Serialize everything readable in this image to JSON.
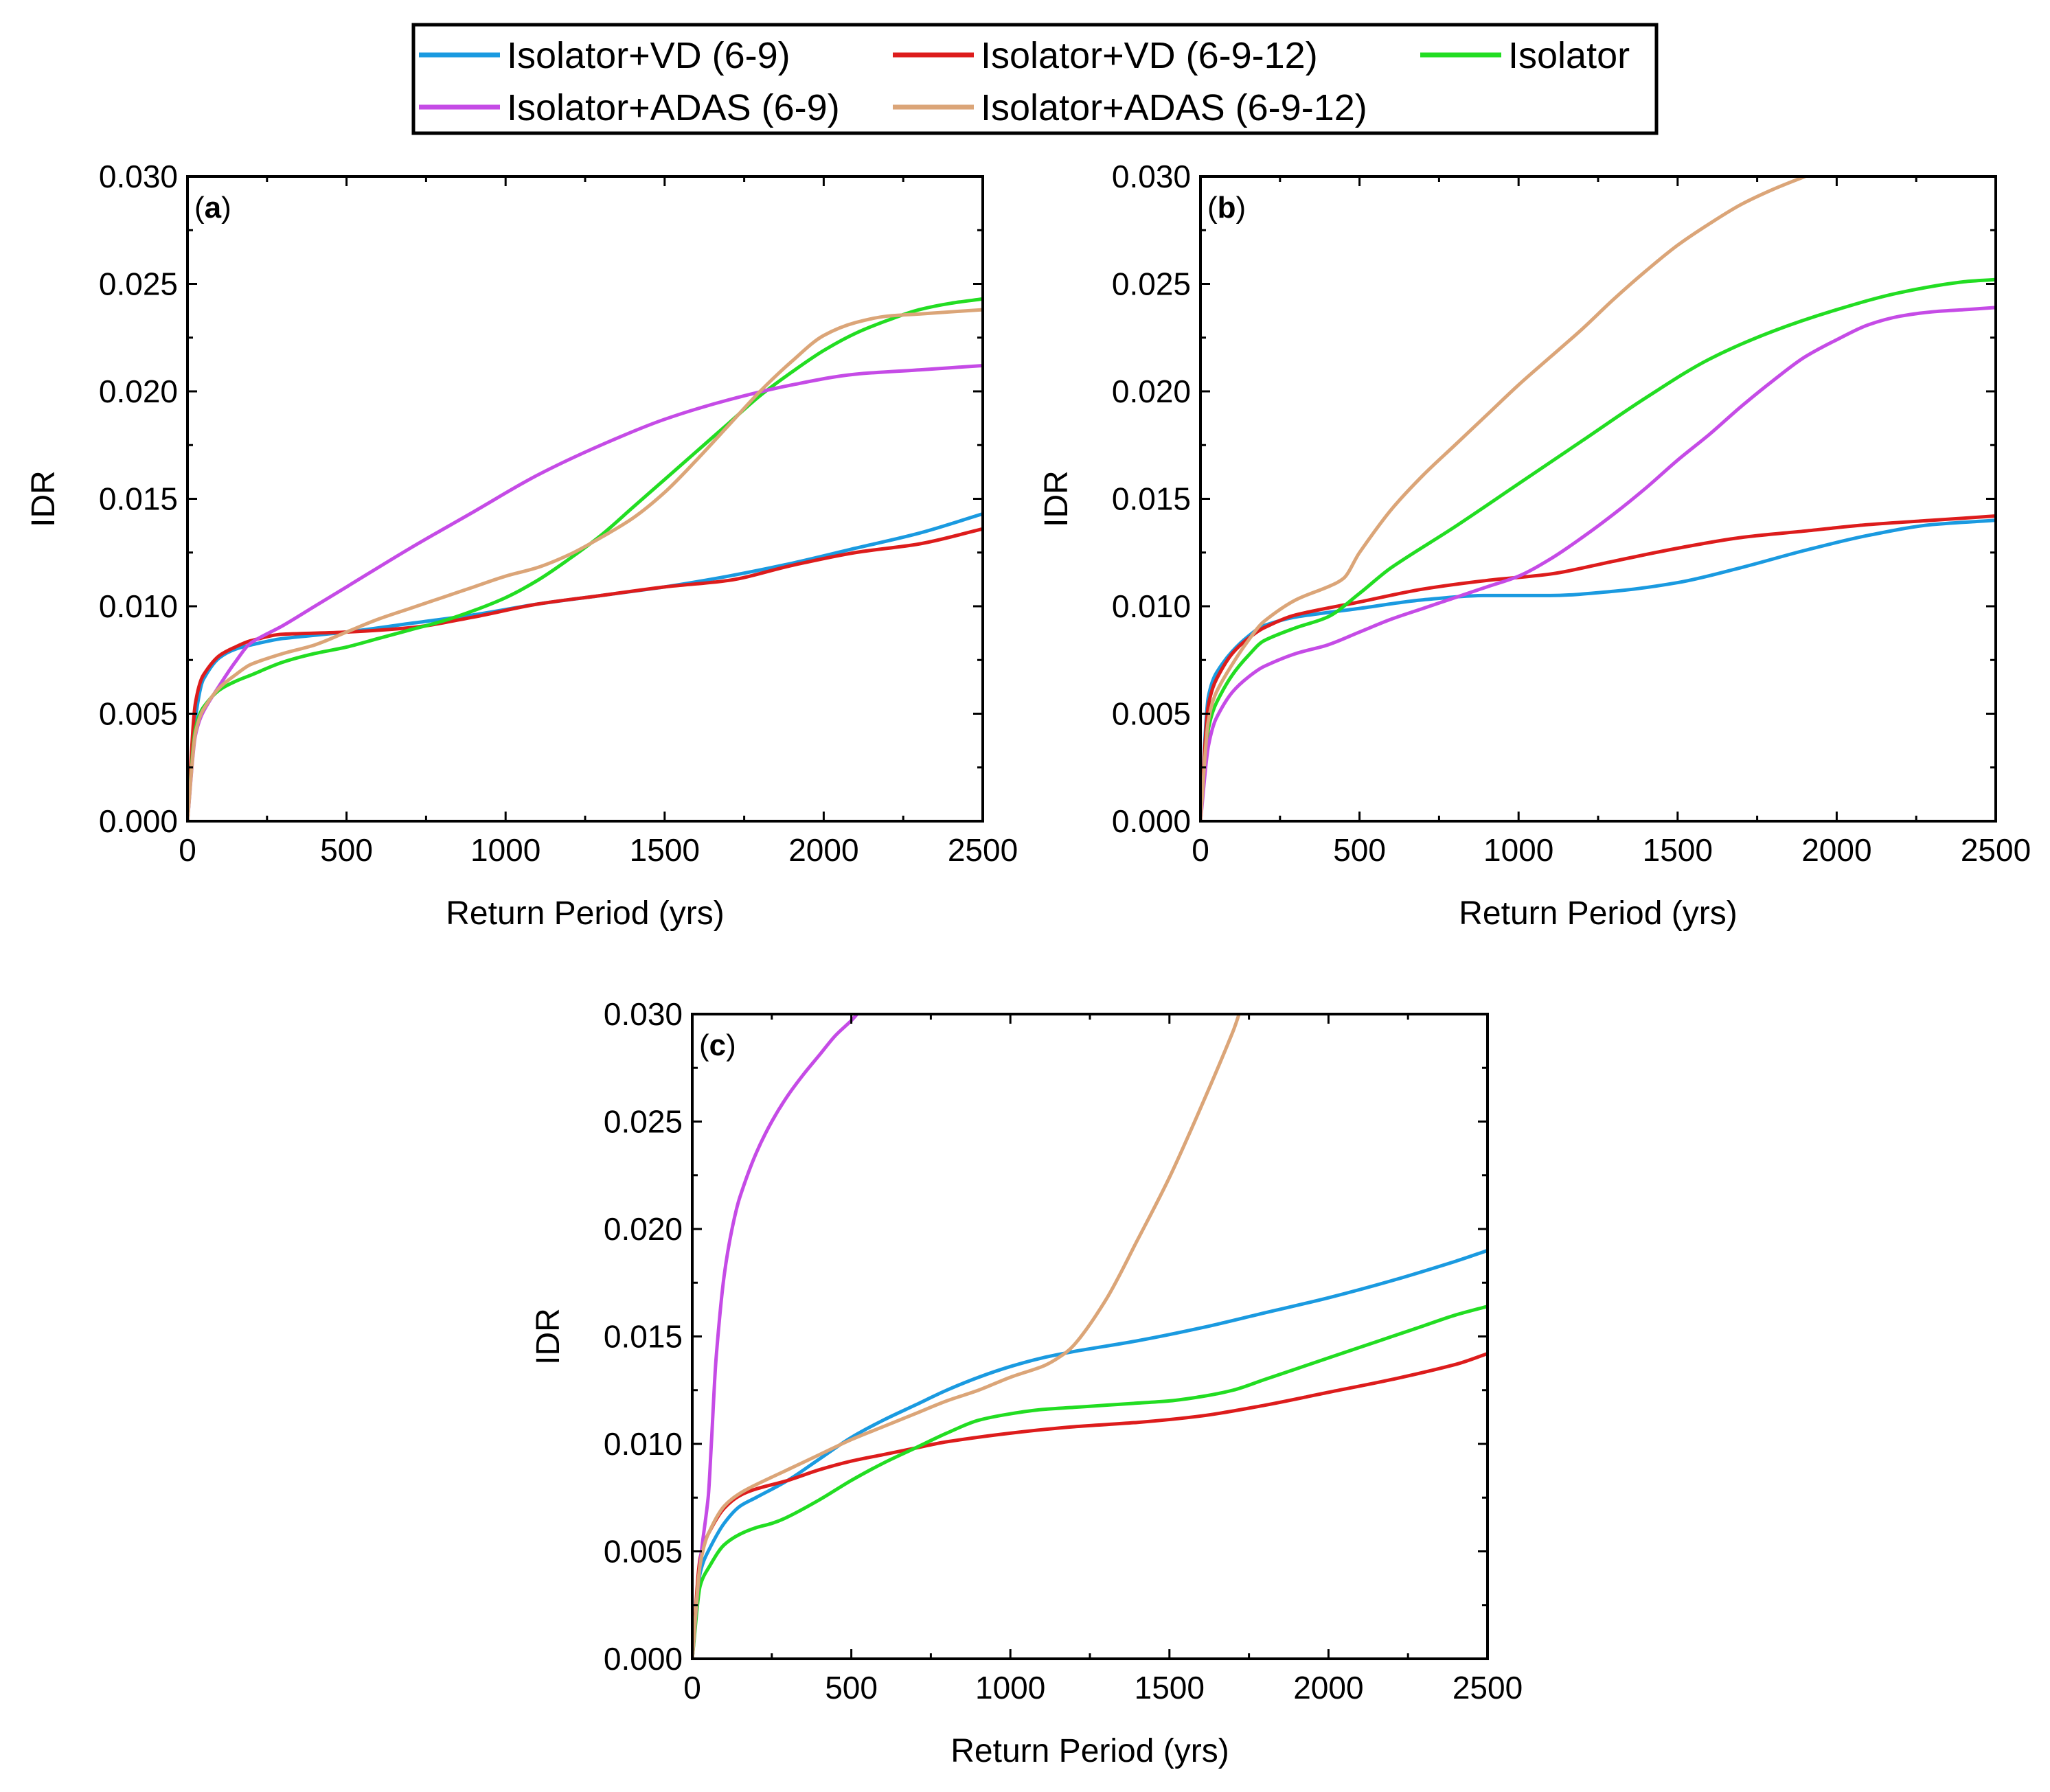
{
  "figure": {
    "legend": [
      {
        "key": "vd69",
        "label": "Isolator+VD (6-9)",
        "color": "#1a9ae0"
      },
      {
        "key": "vd6912",
        "label": "Isolator+VD (6-9-12)",
        "color": "#dd1c1c"
      },
      {
        "key": "iso",
        "label": "Isolator",
        "color": "#22dd22"
      },
      {
        "key": "adas69",
        "label": "Isolator+ADAS (6-9)",
        "color": "#c54be6"
      },
      {
        "key": "adas6912",
        "label": "Isolator+ADAS (6-9-12)",
        "color": "#dba578"
      }
    ]
  },
  "chart_data": [
    {
      "type": "line",
      "panel_label": "(a)",
      "title": "",
      "xlabel": "Return Period (yrs)",
      "ylabel": "IDR",
      "xlim": [
        0,
        2500
      ],
      "ylim": [
        0,
        0.03
      ],
      "xticks": [
        0,
        500,
        1000,
        1500,
        2000,
        2500
      ],
      "xtick_labels": [
        "0",
        "500",
        "1000",
        "1500",
        "2000",
        "2500"
      ],
      "yticks": [
        0,
        0.005,
        0.01,
        0.015,
        0.02,
        0.025,
        0.03
      ],
      "ytick_labels": [
        "0.000",
        "0.005",
        "0.010",
        "0.015",
        "0.020",
        "0.025",
        "0.030"
      ],
      "grid": false,
      "series": [
        {
          "name": "Isolator+VD (6-9)",
          "key": "vd69",
          "x": [
            0,
            25,
            50,
            100,
            150,
            200,
            300,
            500,
            700,
            900,
            1100,
            1300,
            1500,
            1700,
            1900,
            2100,
            2300,
            2500
          ],
          "values": [
            0,
            0.0048,
            0.0066,
            0.0076,
            0.008,
            0.0082,
            0.0085,
            0.0088,
            0.0092,
            0.0096,
            0.0101,
            0.0105,
            0.0109,
            0.0114,
            0.012,
            0.0127,
            0.0134,
            0.0143
          ]
        },
        {
          "name": "Isolator+VD (6-9-12)",
          "key": "vd6912",
          "x": [
            0,
            25,
            50,
            100,
            150,
            200,
            300,
            500,
            700,
            900,
            1100,
            1300,
            1500,
            1700,
            1900,
            2100,
            2300,
            2500
          ],
          "values": [
            0,
            0.0055,
            0.0068,
            0.0077,
            0.0081,
            0.0084,
            0.0087,
            0.0088,
            0.009,
            0.0095,
            0.0101,
            0.0105,
            0.0109,
            0.0112,
            0.0119,
            0.0125,
            0.0129,
            0.0136
          ]
        },
        {
          "name": "Isolator",
          "key": "iso",
          "x": [
            0,
            25,
            50,
            100,
            150,
            200,
            300,
            400,
            500,
            600,
            700,
            800,
            900,
            1000,
            1100,
            1200,
            1300,
            1400,
            1500,
            1600,
            1700,
            1800,
            1900,
            2000,
            2100,
            2200,
            2300,
            2400,
            2500
          ],
          "values": [
            0,
            0.0043,
            0.0053,
            0.0061,
            0.0065,
            0.0068,
            0.0074,
            0.0078,
            0.0081,
            0.0085,
            0.0089,
            0.0093,
            0.0098,
            0.0104,
            0.0112,
            0.0122,
            0.0133,
            0.0146,
            0.0159,
            0.0172,
            0.0185,
            0.0198,
            0.0209,
            0.0219,
            0.0227,
            0.0233,
            0.0238,
            0.0241,
            0.0243
          ]
        },
        {
          "name": "Isolator+ADAS (6-9)",
          "key": "adas69",
          "x": [
            0,
            25,
            50,
            100,
            150,
            200,
            300,
            400,
            500,
            700,
            900,
            1100,
            1300,
            1500,
            1700,
            1900,
            2100,
            2300,
            2500
          ],
          "values": [
            0,
            0.004,
            0.0051,
            0.0063,
            0.0074,
            0.0083,
            0.0091,
            0.01,
            0.0109,
            0.0127,
            0.0144,
            0.0161,
            0.0175,
            0.0187,
            0.0196,
            0.0203,
            0.0208,
            0.021,
            0.0212
          ]
        },
        {
          "name": "Isolator+ADAS (6-9-12)",
          "key": "adas6912",
          "x": [
            0,
            25,
            50,
            100,
            150,
            200,
            300,
            400,
            500,
            600,
            700,
            800,
            900,
            1000,
            1100,
            1200,
            1300,
            1400,
            1500,
            1600,
            1700,
            1800,
            1900,
            2000,
            2100,
            2200,
            2300,
            2400,
            2500
          ],
          "values": [
            0,
            0.0041,
            0.0052,
            0.0062,
            0.0068,
            0.0073,
            0.0078,
            0.0082,
            0.0088,
            0.0094,
            0.0099,
            0.0104,
            0.0109,
            0.0114,
            0.0118,
            0.0124,
            0.0132,
            0.0141,
            0.0153,
            0.0168,
            0.0184,
            0.02,
            0.0214,
            0.0226,
            0.0232,
            0.0235,
            0.0236,
            0.0237,
            0.0238
          ]
        }
      ]
    },
    {
      "type": "line",
      "panel_label": "(b)",
      "title": "",
      "xlabel": "Return Period (yrs)",
      "ylabel": "IDR",
      "xlim": [
        0,
        2500
      ],
      "ylim": [
        0,
        0.03
      ],
      "xticks": [
        0,
        500,
        1000,
        1500,
        2000,
        2500
      ],
      "xtick_labels": [
        "0",
        "500",
        "1000",
        "1500",
        "2000",
        "2500"
      ],
      "yticks": [
        0,
        0.005,
        0.01,
        0.015,
        0.02,
        0.025,
        0.03
      ],
      "ytick_labels": [
        "0.000",
        "0.005",
        "0.010",
        "0.015",
        "0.020",
        "0.025",
        "0.030"
      ],
      "grid": false,
      "series": [
        {
          "name": "Isolator+VD (6-9)",
          "key": "vd69",
          "x": [
            0,
            25,
            50,
            100,
            150,
            200,
            300,
            500,
            700,
            900,
            1100,
            1300,
            1500,
            1700,
            1900,
            2100,
            2300,
            2500
          ],
          "values": [
            0,
            0.0058,
            0.0069,
            0.0079,
            0.0086,
            0.0091,
            0.0095,
            0.0099,
            0.0103,
            0.0105,
            0.0105,
            0.0107,
            0.0111,
            0.0118,
            0.0126,
            0.0133,
            0.0138,
            0.014
          ]
        },
        {
          "name": "Isolator+VD (6-9-12)",
          "key": "vd6912",
          "x": [
            0,
            25,
            50,
            100,
            150,
            200,
            300,
            500,
            700,
            900,
            1100,
            1300,
            1500,
            1700,
            1900,
            2100,
            2300,
            2500
          ],
          "values": [
            0,
            0.0054,
            0.0066,
            0.0078,
            0.0085,
            0.009,
            0.0096,
            0.0102,
            0.0108,
            0.0112,
            0.0115,
            0.0121,
            0.0127,
            0.0132,
            0.0135,
            0.0138,
            0.014,
            0.0142
          ]
        },
        {
          "name": "Isolator",
          "key": "iso",
          "x": [
            0,
            25,
            50,
            100,
            150,
            200,
            300,
            400,
            500,
            600,
            800,
            1000,
            1200,
            1400,
            1600,
            1800,
            2000,
            2200,
            2400,
            2500
          ],
          "values": [
            0,
            0.0043,
            0.0055,
            0.0068,
            0.0077,
            0.0084,
            0.009,
            0.0095,
            0.0106,
            0.0118,
            0.0137,
            0.0157,
            0.0177,
            0.0197,
            0.0215,
            0.0228,
            0.0238,
            0.0246,
            0.0251,
            0.0252
          ]
        },
        {
          "name": "Isolator+ADAS (6-9)",
          "key": "adas69",
          "x": [
            0,
            25,
            50,
            100,
            150,
            200,
            300,
            400,
            500,
            600,
            700,
            800,
            900,
            1000,
            1100,
            1200,
            1300,
            1400,
            1500,
            1600,
            1700,
            1800,
            1900,
            2000,
            2100,
            2200,
            2300,
            2400,
            2500
          ],
          "values": [
            0,
            0.0035,
            0.0048,
            0.006,
            0.0067,
            0.0072,
            0.0078,
            0.0082,
            0.0088,
            0.0094,
            0.0099,
            0.0104,
            0.0109,
            0.0114,
            0.0122,
            0.0132,
            0.0143,
            0.0155,
            0.0168,
            0.018,
            0.0193,
            0.0205,
            0.0216,
            0.0224,
            0.0231,
            0.0235,
            0.0237,
            0.0238,
            0.0239
          ]
        },
        {
          "name": "Isolator+ADAS (6-9-12)",
          "key": "adas6912",
          "x": [
            0,
            25,
            50,
            100,
            150,
            200,
            300,
            400,
            450,
            500,
            600,
            700,
            800,
            900,
            1000,
            1100,
            1200,
            1300,
            1400,
            1500,
            1600,
            1700,
            1800,
            1900,
            1950
          ],
          "values": [
            0,
            0.0047,
            0.006,
            0.0073,
            0.0084,
            0.0093,
            0.0103,
            0.0109,
            0.0113,
            0.0125,
            0.0145,
            0.0161,
            0.0175,
            0.0189,
            0.0203,
            0.0216,
            0.0229,
            0.0243,
            0.0256,
            0.0268,
            0.0278,
            0.0287,
            0.0294,
            0.03,
            0.0303
          ]
        }
      ]
    },
    {
      "type": "line",
      "panel_label": "(c)",
      "title": "",
      "xlabel": "Return Period (yrs)",
      "ylabel": "IDR",
      "xlim": [
        0,
        2500
      ],
      "ylim": [
        0,
        0.03
      ],
      "xticks": [
        0,
        500,
        1000,
        1500,
        2000,
        2500
      ],
      "xtick_labels": [
        "0",
        "500",
        "1000",
        "1500",
        "2000",
        "2500"
      ],
      "yticks": [
        0,
        0.005,
        0.01,
        0.015,
        0.02,
        0.025,
        0.03
      ],
      "ytick_labels": [
        "0.000",
        "0.005",
        "0.010",
        "0.015",
        "0.020",
        "0.025",
        "0.030"
      ],
      "grid": false,
      "series": [
        {
          "name": "Isolator+VD (6-9)",
          "key": "vd69",
          "x": [
            0,
            25,
            50,
            100,
            150,
            200,
            300,
            400,
            500,
            600,
            700,
            800,
            900,
            1000,
            1100,
            1200,
            1400,
            1600,
            1800,
            2000,
            2200,
            2400,
            2500
          ],
          "values": [
            0,
            0.004,
            0.005,
            0.0063,
            0.0071,
            0.0075,
            0.0083,
            0.0093,
            0.0103,
            0.0111,
            0.0118,
            0.0125,
            0.0131,
            0.0136,
            0.014,
            0.0143,
            0.0148,
            0.0154,
            0.0161,
            0.0168,
            0.0176,
            0.0185,
            0.019
          ]
        },
        {
          "name": "Isolator+VD (6-9-12)",
          "key": "vd6912",
          "x": [
            0,
            25,
            50,
            100,
            150,
            200,
            300,
            400,
            500,
            600,
            700,
            800,
            1000,
            1200,
            1400,
            1600,
            1800,
            2000,
            2200,
            2400,
            2500
          ],
          "values": [
            0,
            0.0047,
            0.0058,
            0.007,
            0.0076,
            0.0079,
            0.0083,
            0.0088,
            0.0092,
            0.0095,
            0.0098,
            0.0101,
            0.0105,
            0.0108,
            0.011,
            0.0113,
            0.0118,
            0.0124,
            0.013,
            0.0137,
            0.0142
          ]
        },
        {
          "name": "Isolator",
          "key": "iso",
          "x": [
            0,
            25,
            50,
            100,
            150,
            200,
            250,
            300,
            400,
            500,
            600,
            700,
            800,
            900,
            1000,
            1100,
            1200,
            1300,
            1400,
            1500,
            1600,
            1700,
            1800,
            1900,
            2000,
            2100,
            2200,
            2300,
            2400,
            2500
          ],
          "values": [
            0,
            0.0034,
            0.0042,
            0.0053,
            0.0058,
            0.0061,
            0.0063,
            0.0066,
            0.0074,
            0.0083,
            0.0091,
            0.0098,
            0.0105,
            0.0111,
            0.0114,
            0.0116,
            0.0117,
            0.0118,
            0.0119,
            0.012,
            0.0122,
            0.0125,
            0.013,
            0.0135,
            0.014,
            0.0145,
            0.015,
            0.0155,
            0.016,
            0.0164
          ]
        },
        {
          "name": "Isolator+ADAS (6-9)",
          "key": "adas69",
          "x": [
            0,
            25,
            50,
            60,
            75,
            100,
            125,
            150,
            200,
            250,
            300,
            350,
            400,
            450,
            500,
            530
          ],
          "values": [
            0,
            0.0045,
            0.0075,
            0.01,
            0.014,
            0.0178,
            0.02,
            0.0215,
            0.0235,
            0.025,
            0.0262,
            0.0272,
            0.0281,
            0.029,
            0.0297,
            0.0302
          ]
        },
        {
          "name": "Isolator+ADAS (6-9-12)",
          "key": "adas6912",
          "x": [
            0,
            25,
            50,
            100,
            150,
            200,
            300,
            400,
            500,
            600,
            700,
            800,
            900,
            1000,
            1100,
            1150,
            1200,
            1300,
            1400,
            1500,
            1600,
            1700,
            1730
          ],
          "values": [
            0,
            0.0044,
            0.0058,
            0.0071,
            0.0077,
            0.0081,
            0.0088,
            0.0095,
            0.0102,
            0.0108,
            0.0114,
            0.012,
            0.0125,
            0.0131,
            0.0136,
            0.014,
            0.0146,
            0.0167,
            0.0195,
            0.0224,
            0.0257,
            0.0292,
            0.0305
          ]
        }
      ]
    }
  ]
}
